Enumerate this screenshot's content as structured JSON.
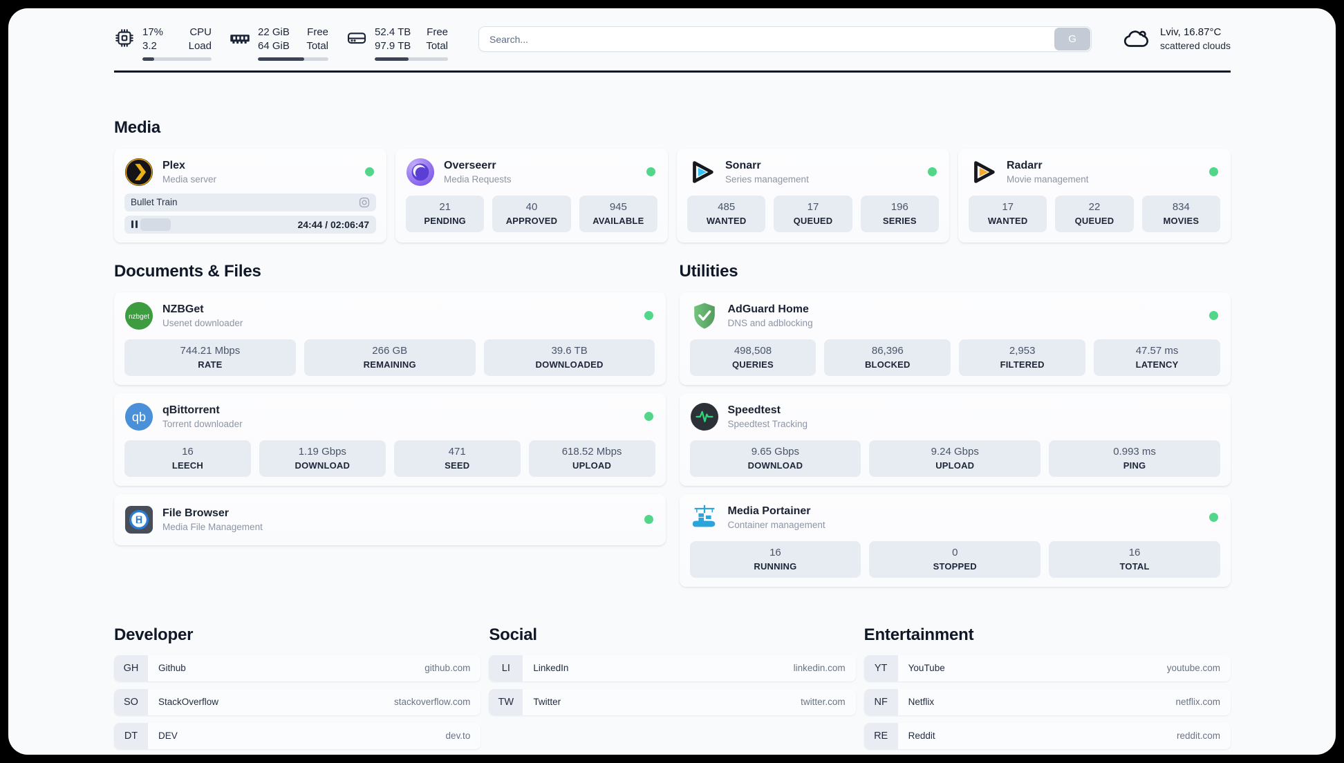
{
  "theme": {
    "page_bg": "#f8fafc",
    "card_bg": "#fcfdfe",
    "tile_bg": "#e7ecf3",
    "status_online": "#52d689",
    "progress_fill": "#3b4557",
    "divider": "#0f1523",
    "plex_brand": "#e8a312",
    "sonarr_brand": "#36c3f1",
    "radarr_brand": "#f7a928",
    "nzbget_brand": "#3d9c40",
    "qbittorrent_brand": "#4a90d9",
    "adguard_brand": "#68bc71",
    "speedtest_pulse": "#2fd57c",
    "portainer_brand": "#2aa5db"
  },
  "header": {
    "cpu": {
      "value_row1": "17%",
      "value_row2": "3.2",
      "label_row1": "CPU",
      "label_row2": "Load",
      "progress_percent": 17
    },
    "memory": {
      "value_row1": "22 GiB",
      "value_row2": "64 GiB",
      "label_row1": "Free",
      "label_row2": "Total",
      "progress_percent": 66
    },
    "storage": {
      "value_row1": "52.4 TB",
      "value_row2": "97.9 TB",
      "label_row1": "Free",
      "label_row2": "Total",
      "progress_percent": 46
    },
    "search": {
      "placeholder": "Search...",
      "button_label": "G"
    },
    "weather": {
      "location": "Lviv, 16.87°C",
      "condition": "scattered clouds"
    }
  },
  "sections": {
    "media": {
      "title": "Media",
      "apps": {
        "plex": {
          "name": "Plex",
          "subtitle": "Media server",
          "online": true,
          "now_playing": "Bullet Train",
          "time": "24:44 / 02:06:47",
          "progress_percent": 19.5
        },
        "overseerr": {
          "name": "Overseerr",
          "subtitle": "Media Requests",
          "online": true,
          "stats": [
            {
              "value": "21",
              "label": "PENDING"
            },
            {
              "value": "40",
              "label": "APPROVED"
            },
            {
              "value": "945",
              "label": "AVAILABLE"
            }
          ]
        },
        "sonarr": {
          "name": "Sonarr",
          "subtitle": "Series management",
          "online": true,
          "stats": [
            {
              "value": "485",
              "label": "WANTED"
            },
            {
              "value": "17",
              "label": "QUEUED"
            },
            {
              "value": "196",
              "label": "SERIES"
            }
          ]
        },
        "radarr": {
          "name": "Radarr",
          "subtitle": "Movie management",
          "online": true,
          "stats": [
            {
              "value": "17",
              "label": "WANTED"
            },
            {
              "value": "22",
              "label": "QUEUED"
            },
            {
              "value": "834",
              "label": "MOVIES"
            }
          ]
        }
      }
    },
    "documents": {
      "title": "Documents & Files",
      "apps": {
        "nzbget": {
          "name": "NZBGet",
          "subtitle": "Usenet downloader",
          "online": true,
          "stats": [
            {
              "value": "744.21 Mbps",
              "label": "RATE"
            },
            {
              "value": "266 GB",
              "label": "REMAINING"
            },
            {
              "value": "39.6 TB",
              "label": "DOWNLOADED"
            }
          ]
        },
        "qbittorrent": {
          "name": "qBittorrent",
          "subtitle": "Torrent downloader",
          "online": true,
          "stats": [
            {
              "value": "16",
              "label": "LEECH"
            },
            {
              "value": "1.19 Gbps",
              "label": "DOWNLOAD"
            },
            {
              "value": "471",
              "label": "SEED"
            },
            {
              "value": "618.52 Mbps",
              "label": "UPLOAD"
            }
          ]
        },
        "filebrowser": {
          "name": "File Browser",
          "subtitle": "Media File Management",
          "online": true
        }
      }
    },
    "utilities": {
      "title": "Utilities",
      "apps": {
        "adguard": {
          "name": "AdGuard Home",
          "subtitle": "DNS and adblocking",
          "online": true,
          "stats": [
            {
              "value": "498,508",
              "label": "QUERIES"
            },
            {
              "value": "86,396",
              "label": "BLOCKED"
            },
            {
              "value": "2,953",
              "label": "FILTERED"
            },
            {
              "value": "47.57 ms",
              "label": "LATENCY"
            }
          ]
        },
        "speedtest": {
          "name": "Speedtest",
          "subtitle": "Speedtest Tracking",
          "online": false,
          "stats": [
            {
              "value": "9.65 Gbps",
              "label": "DOWNLOAD"
            },
            {
              "value": "9.24 Gbps",
              "label": "UPLOAD"
            },
            {
              "value": "0.993 ms",
              "label": "PING"
            }
          ]
        },
        "portainer": {
          "name": "Media Portainer",
          "subtitle": "Container management",
          "online": true,
          "stats": [
            {
              "value": "16",
              "label": "RUNNING"
            },
            {
              "value": "0",
              "label": "STOPPED"
            },
            {
              "value": "16",
              "label": "TOTAL"
            }
          ]
        }
      }
    },
    "bookmarks": [
      {
        "title": "Developer",
        "items": [
          {
            "abbr": "GH",
            "name": "Github",
            "url": "github.com"
          },
          {
            "abbr": "SO",
            "name": "StackOverflow",
            "url": "stackoverflow.com"
          },
          {
            "abbr": "DT",
            "name": "DEV",
            "url": "dev.to"
          }
        ]
      },
      {
        "title": "Social",
        "items": [
          {
            "abbr": "LI",
            "name": "LinkedIn",
            "url": "linkedin.com"
          },
          {
            "abbr": "TW",
            "name": "Twitter",
            "url": "twitter.com"
          }
        ]
      },
      {
        "title": "Entertainment",
        "items": [
          {
            "abbr": "YT",
            "name": "YouTube",
            "url": "youtube.com"
          },
          {
            "abbr": "NF",
            "name": "Netflix",
            "url": "netflix.com"
          },
          {
            "abbr": "RE",
            "name": "Reddit",
            "url": "reddit.com"
          }
        ]
      }
    ]
  }
}
